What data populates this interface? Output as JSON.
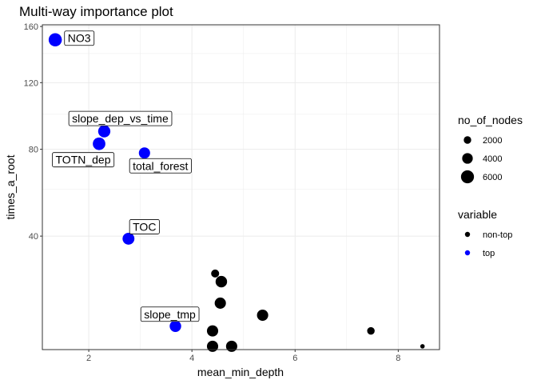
{
  "chart_data": {
    "type": "scatter",
    "title": "Multi-way importance plot",
    "xlabel": "mean_min_depth",
    "ylabel": "times_a_root",
    "x_ticks": [
      "2",
      "4",
      "6",
      "8"
    ],
    "y_ticks": [
      "40",
      "80",
      "120",
      "160"
    ],
    "xlim": [
      1.1,
      8.8
    ],
    "ylim_sqrt": [
      2.9,
      12.7
    ],
    "y_scale": "sqrt",
    "grid": true,
    "legend_placement": "right",
    "colors": {
      "top": "#0000ff",
      "non-top": "#000000",
      "panel_border": "#333333",
      "grid": "#ebebeb"
    },
    "legend": {
      "size_title": "no_of_nodes",
      "size_entries": [
        {
          "label": "2000",
          "value": 2000
        },
        {
          "label": "4000",
          "value": 4000
        },
        {
          "label": "6000",
          "value": 6000
        }
      ],
      "color_title": "variable",
      "color_entries": [
        {
          "label": "non-top",
          "key": "non-top"
        },
        {
          "label": "top",
          "key": "top"
        }
      ]
    },
    "points": [
      {
        "label": "NO3",
        "x": 1.35,
        "y": 150,
        "nodes": 6200,
        "variable": "top"
      },
      {
        "label": "slope_dep_vs_time",
        "x": 2.3,
        "y": 90,
        "nodes": 5300,
        "variable": "top"
      },
      {
        "label": "TOTN_dep",
        "x": 2.2,
        "y": 83,
        "nodes": 5600,
        "variable": "top"
      },
      {
        "label": "total_forest",
        "x": 3.08,
        "y": 78,
        "nodes": 4500,
        "variable": "top"
      },
      {
        "label": "TOC",
        "x": 2.77,
        "y": 39,
        "nodes": 5000,
        "variable": "top"
      },
      {
        "label": "slope_tmp",
        "x": 3.68,
        "y": 13,
        "nodes": 4700,
        "variable": "top"
      },
      {
        "label": "",
        "x": 4.45,
        "y": 27,
        "nodes": 2300,
        "variable": "non-top"
      },
      {
        "label": "",
        "x": 4.57,
        "y": 24.5,
        "nodes": 4700,
        "variable": "non-top"
      },
      {
        "label": "",
        "x": 4.55,
        "y": 18.5,
        "nodes": 4500,
        "variable": "non-top"
      },
      {
        "label": "",
        "x": 5.37,
        "y": 15.5,
        "nodes": 4500,
        "variable": "non-top"
      },
      {
        "label": "",
        "x": 4.4,
        "y": 12,
        "nodes": 4500,
        "variable": "non-top"
      },
      {
        "label": "",
        "x": 7.47,
        "y": 12,
        "nodes": 2000,
        "variable": "non-top"
      },
      {
        "label": "",
        "x": 4.4,
        "y": 9,
        "nodes": 4500,
        "variable": "non-top"
      },
      {
        "label": "",
        "x": 4.77,
        "y": 9,
        "nodes": 4500,
        "variable": "non-top"
      },
      {
        "label": "",
        "x": 8.47,
        "y": 9,
        "nodes": 700,
        "variable": "non-top"
      }
    ]
  }
}
